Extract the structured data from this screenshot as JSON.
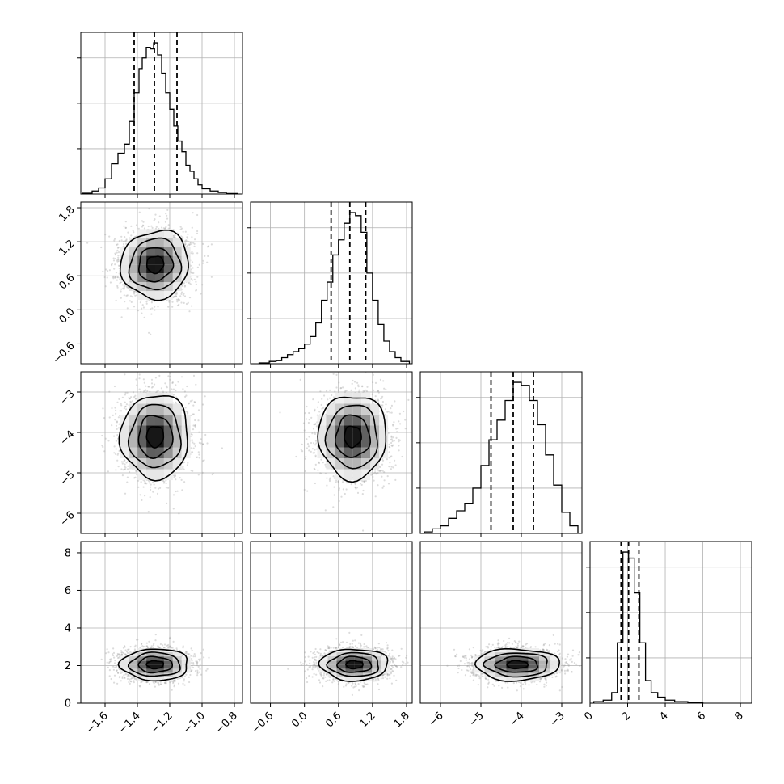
{
  "chart_data": {
    "type": "corner",
    "parameters": [
      {
        "index": 0,
        "lim": [
          -1.75,
          -0.75
        ],
        "ticks": [
          -1.6,
          -1.4,
          -1.2,
          -1.0,
          -0.8
        ],
        "tick_labels": [
          "−1.6",
          "−1.4",
          "−1.2",
          "−1.0",
          "−0.8"
        ],
        "mean": -1.29,
        "sd": 0.105,
        "quantiles": [
          -1.42,
          -1.295,
          -1.155
        ]
      },
      {
        "index": 1,
        "lim": [
          -0.95,
          1.9
        ],
        "ticks": [
          -0.6,
          0.0,
          0.6,
          1.2,
          1.8
        ],
        "tick_labels": [
          "−0.6",
          "0.0",
          "0.6",
          "1.2",
          "1.8"
        ],
        "mean": 0.8,
        "sd": 0.3,
        "quantiles": [
          0.47,
          0.8,
          1.08
        ]
      },
      {
        "index": 2,
        "lim": [
          -6.5,
          -2.5
        ],
        "ticks": [
          -6,
          -5,
          -4,
          -3
        ],
        "tick_labels": [
          "−6",
          "−5",
          "−4",
          "−3"
        ],
        "mean": -4.15,
        "sd": 0.52,
        "quantiles": [
          -4.75,
          -4.2,
          -3.7
        ]
      },
      {
        "index": 3,
        "lim": [
          0,
          8.6
        ],
        "ticks": [
          0,
          2,
          4,
          6,
          8
        ],
        "tick_labels": [
          "0",
          "2",
          "4",
          "6",
          "8"
        ],
        "mean": 2.05,
        "sd": 0.42,
        "quantiles": [
          1.65,
          2.05,
          2.6
        ]
      }
    ],
    "histograms": [
      {
        "param": 0,
        "bin_edges": [
          -1.74,
          -1.68,
          -1.64,
          -1.6,
          -1.56,
          -1.52,
          -1.48,
          -1.45,
          -1.42,
          -1.39,
          -1.37,
          -1.345,
          -1.32,
          -1.3,
          -1.275,
          -1.25,
          -1.225,
          -1.2,
          -1.175,
          -1.15,
          -1.125,
          -1.1,
          -1.075,
          -1.05,
          -1.025,
          -1.0,
          -0.95,
          -0.9,
          -0.85,
          -0.78
        ],
        "counts": [
          0.005,
          0.02,
          0.04,
          0.1,
          0.2,
          0.27,
          0.33,
          0.48,
          0.67,
          0.83,
          0.9,
          0.97,
          0.96,
          1.0,
          0.92,
          0.8,
          0.67,
          0.56,
          0.45,
          0.35,
          0.28,
          0.19,
          0.15,
          0.1,
          0.06,
          0.035,
          0.02,
          0.01,
          0.003
        ]
      },
      {
        "param": 1,
        "bin_edges": [
          -0.8,
          -0.62,
          -0.5,
          -0.4,
          -0.3,
          -0.2,
          -0.1,
          0.0,
          0.1,
          0.2,
          0.3,
          0.4,
          0.5,
          0.6,
          0.7,
          0.8,
          0.9,
          1.0,
          1.1,
          1.2,
          1.3,
          1.4,
          1.5,
          1.6,
          1.7,
          1.85
        ],
        "counts": [
          0.005,
          0.015,
          0.02,
          0.04,
          0.06,
          0.08,
          0.1,
          0.13,
          0.18,
          0.27,
          0.42,
          0.54,
          0.72,
          0.82,
          0.93,
          1.0,
          0.98,
          0.87,
          0.6,
          0.42,
          0.26,
          0.15,
          0.08,
          0.04,
          0.015
        ]
      },
      {
        "param": 2,
        "bin_edges": [
          -6.4,
          -6.2,
          -6.0,
          -5.8,
          -5.6,
          -5.4,
          -5.2,
          -5.0,
          -4.8,
          -4.6,
          -4.4,
          -4.2,
          -4.0,
          -3.8,
          -3.6,
          -3.4,
          -3.2,
          -3.0,
          -2.8,
          -2.6
        ],
        "counts": [
          0.01,
          0.03,
          0.05,
          0.1,
          0.15,
          0.2,
          0.3,
          0.45,
          0.62,
          0.75,
          0.88,
          1.0,
          0.98,
          0.88,
          0.72,
          0.52,
          0.32,
          0.14,
          0.05
        ]
      },
      {
        "param": 3,
        "bin_edges": [
          0.2,
          0.7,
          1.15,
          1.45,
          1.75,
          2.05,
          2.35,
          2.65,
          2.95,
          3.25,
          3.6,
          4.0,
          4.5,
          5.2,
          6.0
        ],
        "counts": [
          0.01,
          0.02,
          0.07,
          0.4,
          1.0,
          0.96,
          0.73,
          0.4,
          0.15,
          0.07,
          0.04,
          0.02,
          0.01,
          0.003
        ]
      }
    ],
    "pairs": [
      {
        "x": 0,
        "y": 1,
        "center": [
          -1.29,
          0.8
        ],
        "correlation": 0.05
      },
      {
        "x": 0,
        "y": 2,
        "center": [
          -1.29,
          -4.1
        ],
        "correlation": 0.02
      },
      {
        "x": 1,
        "y": 2,
        "center": [
          0.85,
          -4.1
        ],
        "correlation": 0.0
      },
      {
        "x": 0,
        "y": 3,
        "center": [
          -1.29,
          2.05
        ],
        "correlation": 0.0
      },
      {
        "x": 1,
        "y": 3,
        "center": [
          0.88,
          2.05
        ],
        "correlation": 0.0
      },
      {
        "x": 2,
        "y": 3,
        "center": [
          -4.1,
          2.05
        ],
        "correlation": 0.0
      }
    ],
    "contour_levels_sigma": [
      0.5,
      1.0,
      1.5,
      2.0
    ],
    "grid": true,
    "colors": {
      "line": "#000000",
      "grid": "#b0b0b0",
      "points": "#9a9a9a",
      "density_dark": "#000000",
      "density_light": "#ffffff"
    }
  }
}
